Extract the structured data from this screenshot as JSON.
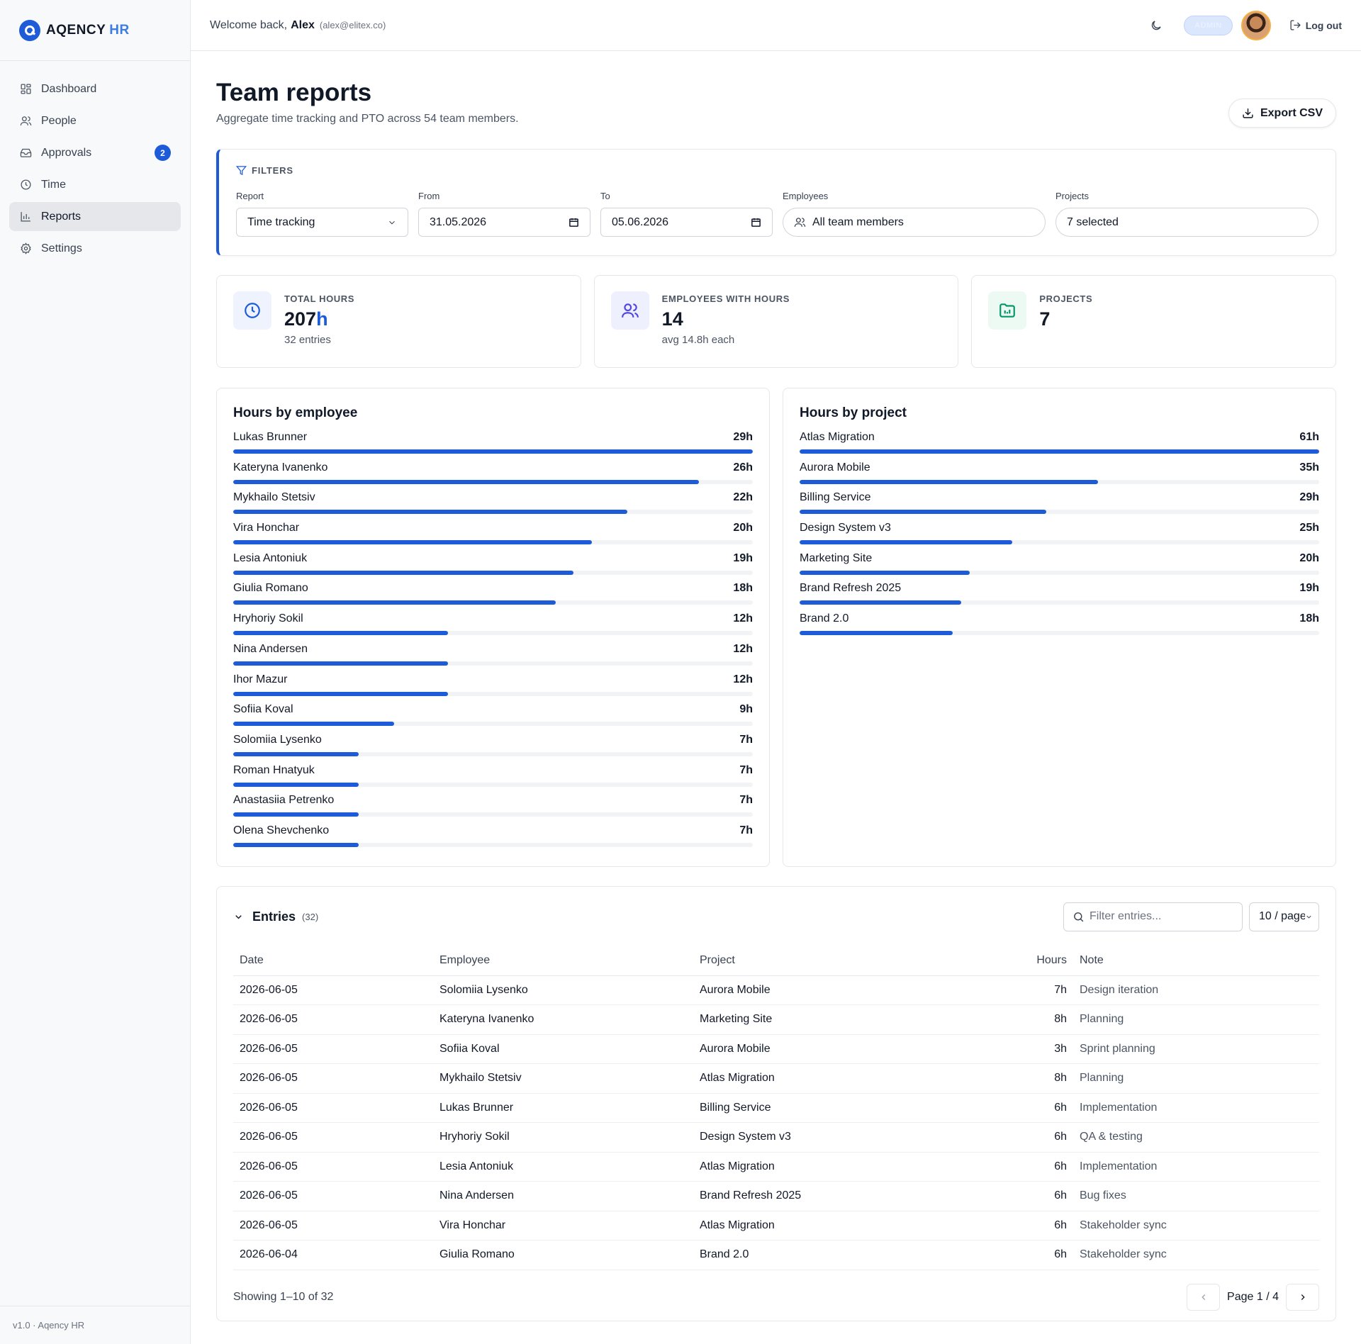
{
  "brand": {
    "name": "AQENCY",
    "accent": "HR",
    "color": "#1d5bd8"
  },
  "nav": {
    "items": [
      {
        "label": "Dashboard",
        "icon": "grid-icon"
      },
      {
        "label": "People",
        "icon": "users-icon"
      },
      {
        "label": "Approvals",
        "icon": "inbox-icon",
        "badge": "2"
      },
      {
        "label": "Time",
        "icon": "clock-icon"
      },
      {
        "label": "Reports",
        "icon": "bar-chart-icon",
        "active": true
      },
      {
        "label": "Settings",
        "icon": "gear-icon"
      }
    ]
  },
  "footer": {
    "version": "v1.0 · Aqency HR"
  },
  "topbar": {
    "welcome": "Welcome back,",
    "user_name": "Alex",
    "user_email": "(alex@elitex.co)",
    "role": "ADMIN",
    "logout_label": "Log out"
  },
  "page": {
    "title": "Team reports",
    "subtitle": "Aggregate time tracking and PTO across 54 team members.",
    "export_label": "Export CSV"
  },
  "filters": {
    "heading": "FILTERS",
    "report_label": "Report",
    "report_value": "Time tracking",
    "from_label": "From",
    "from_value": "31.05.2026",
    "to_label": "To",
    "to_value": "05.06.2026",
    "employees_label": "Employees",
    "employees_value": "All team members",
    "projects_label": "Projects",
    "projects_value": "7 selected"
  },
  "stats": [
    {
      "label": "TOTAL HOURS",
      "value": "207",
      "unit": "h",
      "note": "32 entries",
      "icon": "clock-icon",
      "color": "#1d5bd8",
      "bg": "#eef3fd"
    },
    {
      "label": "EMPLOYEES WITH HOURS",
      "value": "14",
      "unit": "",
      "note": "avg 14.8h each",
      "icon": "users-icon",
      "color": "#4f46e5",
      "bg": "#eef0fd"
    },
    {
      "label": "PROJECTS",
      "value": "7",
      "unit": "",
      "note": "",
      "icon": "folder-chart-icon",
      "color": "#059669",
      "bg": "#ecfaf3"
    }
  ],
  "hours_by_employee": {
    "title": "Hours by employee",
    "max": 29,
    "rows": [
      {
        "name": "Lukas Brunner",
        "hours": 29,
        "label": "29h"
      },
      {
        "name": "Kateryna Ivanenko",
        "hours": 26,
        "label": "26h"
      },
      {
        "name": "Mykhailo Stetsiv",
        "hours": 22,
        "label": "22h"
      },
      {
        "name": "Vira Honchar",
        "hours": 20,
        "label": "20h"
      },
      {
        "name": "Lesia Antoniuk",
        "hours": 19,
        "label": "19h"
      },
      {
        "name": "Giulia Romano",
        "hours": 18,
        "label": "18h"
      },
      {
        "name": "Hryhoriy Sokil",
        "hours": 12,
        "label": "12h"
      },
      {
        "name": "Nina Andersen",
        "hours": 12,
        "label": "12h"
      },
      {
        "name": "Ihor Mazur",
        "hours": 12,
        "label": "12h"
      },
      {
        "name": "Sofiia Koval",
        "hours": 9,
        "label": "9h"
      },
      {
        "name": "Solomiia Lysenko",
        "hours": 7,
        "label": "7h"
      },
      {
        "name": "Roman Hnatyuk",
        "hours": 7,
        "label": "7h"
      },
      {
        "name": "Anastasiia Petrenko",
        "hours": 7,
        "label": "7h"
      },
      {
        "name": "Olena Shevchenko",
        "hours": 7,
        "label": "7h"
      }
    ]
  },
  "hours_by_project": {
    "title": "Hours by project",
    "max": 61,
    "rows": [
      {
        "name": "Atlas Migration",
        "hours": 61,
        "label": "61h"
      },
      {
        "name": "Aurora Mobile",
        "hours": 35,
        "label": "35h"
      },
      {
        "name": "Billing Service",
        "hours": 29,
        "label": "29h"
      },
      {
        "name": "Design System v3",
        "hours": 25,
        "label": "25h"
      },
      {
        "name": "Marketing Site",
        "hours": 20,
        "label": "20h"
      },
      {
        "name": "Brand Refresh 2025",
        "hours": 19,
        "label": "19h"
      },
      {
        "name": "Brand 2.0",
        "hours": 18,
        "label": "18h"
      }
    ]
  },
  "entries": {
    "title": "Entries",
    "count": "(32)",
    "search_placeholder": "Filter entries...",
    "per_page": "10 / page",
    "columns": {
      "date": "Date",
      "employee": "Employee",
      "project": "Project",
      "hours": "Hours",
      "note": "Note"
    },
    "rows": [
      {
        "date": "2026-06-05",
        "employee": "Solomiia Lysenko",
        "project": "Aurora Mobile",
        "hours": "7h",
        "note": "Design iteration"
      },
      {
        "date": "2026-06-05",
        "employee": "Kateryna Ivanenko",
        "project": "Marketing Site",
        "hours": "8h",
        "note": "Planning"
      },
      {
        "date": "2026-06-05",
        "employee": "Sofiia Koval",
        "project": "Aurora Mobile",
        "hours": "3h",
        "note": "Sprint planning"
      },
      {
        "date": "2026-06-05",
        "employee": "Mykhailo Stetsiv",
        "project": "Atlas Migration",
        "hours": "8h",
        "note": "Planning"
      },
      {
        "date": "2026-06-05",
        "employee": "Lukas Brunner",
        "project": "Billing Service",
        "hours": "6h",
        "note": "Implementation"
      },
      {
        "date": "2026-06-05",
        "employee": "Hryhoriy Sokil",
        "project": "Design System v3",
        "hours": "6h",
        "note": "QA & testing"
      },
      {
        "date": "2026-06-05",
        "employee": "Lesia Antoniuk",
        "project": "Atlas Migration",
        "hours": "6h",
        "note": "Implementation"
      },
      {
        "date": "2026-06-05",
        "employee": "Nina Andersen",
        "project": "Brand Refresh 2025",
        "hours": "6h",
        "note": "Bug fixes"
      },
      {
        "date": "2026-06-05",
        "employee": "Vira Honchar",
        "project": "Atlas Migration",
        "hours": "6h",
        "note": "Stakeholder sync"
      },
      {
        "date": "2026-06-04",
        "employee": "Giulia Romano",
        "project": "Brand 2.0",
        "hours": "6h",
        "note": "Stakeholder sync"
      }
    ],
    "showing": "Showing 1–10 of 32",
    "page_label": "Page 1 / 4"
  }
}
